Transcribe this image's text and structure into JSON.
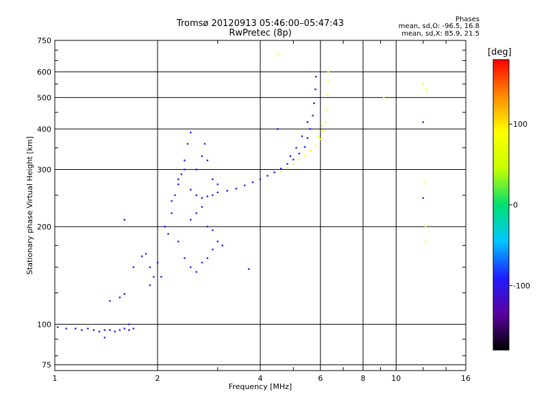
{
  "header": {
    "title": "Tromsø 20120913 05:46:00–05:47:43",
    "subtitle": "RwPretec (8p)"
  },
  "stats": {
    "heading": "Phases",
    "o_line": "mean, sd,O: -96.5, 16.8",
    "x_line": "mean, sd,X: 85.9, 21.5"
  },
  "colorbar": {
    "unit": "[deg]",
    "range": [
      -180,
      180
    ],
    "ticks": [
      100,
      0,
      -100
    ],
    "tick_labels": [
      "100",
      "0",
      "-100"
    ],
    "scale": [
      "#000000",
      "#5a00a0",
      "#1e1eff",
      "#00c8ff",
      "#00e070",
      "#c8ff00",
      "#ffff00",
      "#ff8c00",
      "#ff0000"
    ]
  },
  "chart_data": {
    "type": "scatter",
    "xlabel": "Frequency [MHz]",
    "ylabel": "Stationary phase Virtual Height [km]",
    "xscale": "log",
    "yscale": "log",
    "xlim": [
      1,
      16
    ],
    "ylim": [
      72,
      750
    ],
    "grid": true,
    "xticks": [
      1,
      2,
      4,
      6,
      8,
      10,
      16
    ],
    "xtick_labels": [
      "1",
      "2",
      "4",
      "6",
      "8",
      "10",
      "16"
    ],
    "yticks": [
      75,
      100,
      200,
      300,
      400,
      500,
      600,
      750
    ],
    "ytick_labels": [
      "75",
      "100",
      "200",
      "300",
      "400",
      "500",
      "600",
      "750"
    ],
    "series": [
      {
        "mode": "O",
        "phase": -97,
        "points": [
          [
            1.02,
            98
          ],
          [
            1.08,
            97
          ],
          [
            1.15,
            97
          ],
          [
            1.2,
            96
          ],
          [
            1.25,
            97
          ],
          [
            1.3,
            96
          ],
          [
            1.35,
            95
          ],
          [
            1.4,
            96
          ],
          [
            1.45,
            96
          ],
          [
            1.5,
            95
          ],
          [
            1.55,
            96
          ],
          [
            1.6,
            97
          ],
          [
            1.65,
            96
          ],
          [
            1.7,
            97
          ],
          [
            1.4,
            91
          ],
          [
            1.65,
            100
          ],
          [
            1.45,
            118
          ],
          [
            1.55,
            121
          ],
          [
            1.6,
            124
          ],
          [
            1.7,
            150
          ],
          [
            1.8,
            162
          ],
          [
            1.85,
            165
          ],
          [
            1.9,
            150
          ],
          [
            1.95,
            140
          ],
          [
            2.0,
            155
          ],
          [
            1.9,
            132
          ],
          [
            2.05,
            140
          ],
          [
            2.1,
            200
          ],
          [
            2.15,
            190
          ],
          [
            2.2,
            220
          ],
          [
            2.25,
            250
          ],
          [
            2.3,
            270
          ],
          [
            2.35,
            290
          ],
          [
            2.4,
            320
          ],
          [
            2.45,
            360
          ],
          [
            2.5,
            390
          ],
          [
            2.2,
            240
          ],
          [
            2.3,
            280
          ],
          [
            2.4,
            300
          ],
          [
            2.5,
            260
          ],
          [
            2.6,
            250
          ],
          [
            2.7,
            245
          ],
          [
            2.8,
            248
          ],
          [
            2.9,
            250
          ],
          [
            3.0,
            255
          ],
          [
            2.6,
            300
          ],
          [
            2.7,
            330
          ],
          [
            2.75,
            360
          ],
          [
            2.8,
            320
          ],
          [
            2.9,
            280
          ],
          [
            3.0,
            270
          ],
          [
            2.3,
            180
          ],
          [
            2.4,
            160
          ],
          [
            2.5,
            150
          ],
          [
            2.6,
            145
          ],
          [
            2.7,
            155
          ],
          [
            2.8,
            160
          ],
          [
            2.9,
            170
          ],
          [
            3.0,
            180
          ],
          [
            3.1,
            175
          ],
          [
            2.5,
            210
          ],
          [
            2.6,
            220
          ],
          [
            2.7,
            230
          ],
          [
            2.8,
            200
          ],
          [
            2.9,
            195
          ],
          [
            3.2,
            258
          ],
          [
            3.4,
            262
          ],
          [
            3.6,
            268
          ],
          [
            3.8,
            274
          ],
          [
            4.0,
            280
          ],
          [
            4.2,
            287
          ],
          [
            4.4,
            294
          ],
          [
            4.6,
            302
          ],
          [
            4.8,
            312
          ],
          [
            5.0,
            322
          ],
          [
            5.2,
            336
          ],
          [
            5.4,
            352
          ],
          [
            5.5,
            375
          ],
          [
            5.6,
            400
          ],
          [
            5.7,
            440
          ],
          [
            5.75,
            480
          ],
          [
            5.8,
            530
          ],
          [
            5.82,
            580
          ],
          [
            4.9,
            330
          ],
          [
            5.1,
            350
          ],
          [
            5.3,
            380
          ],
          [
            5.5,
            420
          ],
          [
            1.6,
            210
          ],
          [
            3.7,
            148
          ],
          [
            4.5,
            400
          ],
          [
            12,
            245
          ],
          [
            12,
            420
          ]
        ]
      },
      {
        "mode": "X",
        "phase": 86,
        "points": [
          [
            4.6,
            296
          ],
          [
            4.8,
            304
          ],
          [
            5.0,
            312
          ],
          [
            5.2,
            322
          ],
          [
            5.4,
            332
          ],
          [
            5.6,
            344
          ],
          [
            5.8,
            356
          ],
          [
            6.0,
            372
          ],
          [
            6.1,
            395
          ],
          [
            6.2,
            420
          ],
          [
            6.25,
            460
          ],
          [
            6.3,
            510
          ],
          [
            6.32,
            560
          ],
          [
            6.33,
            600
          ],
          [
            5.9,
            380
          ],
          [
            6.05,
            410
          ],
          [
            4.5,
            680
          ],
          [
            9.2,
            500
          ],
          [
            12.0,
            550
          ],
          [
            12.3,
            530
          ],
          [
            12.1,
            275
          ],
          [
            12.2,
            200
          ],
          [
            12.2,
            180
          ]
        ]
      }
    ]
  }
}
